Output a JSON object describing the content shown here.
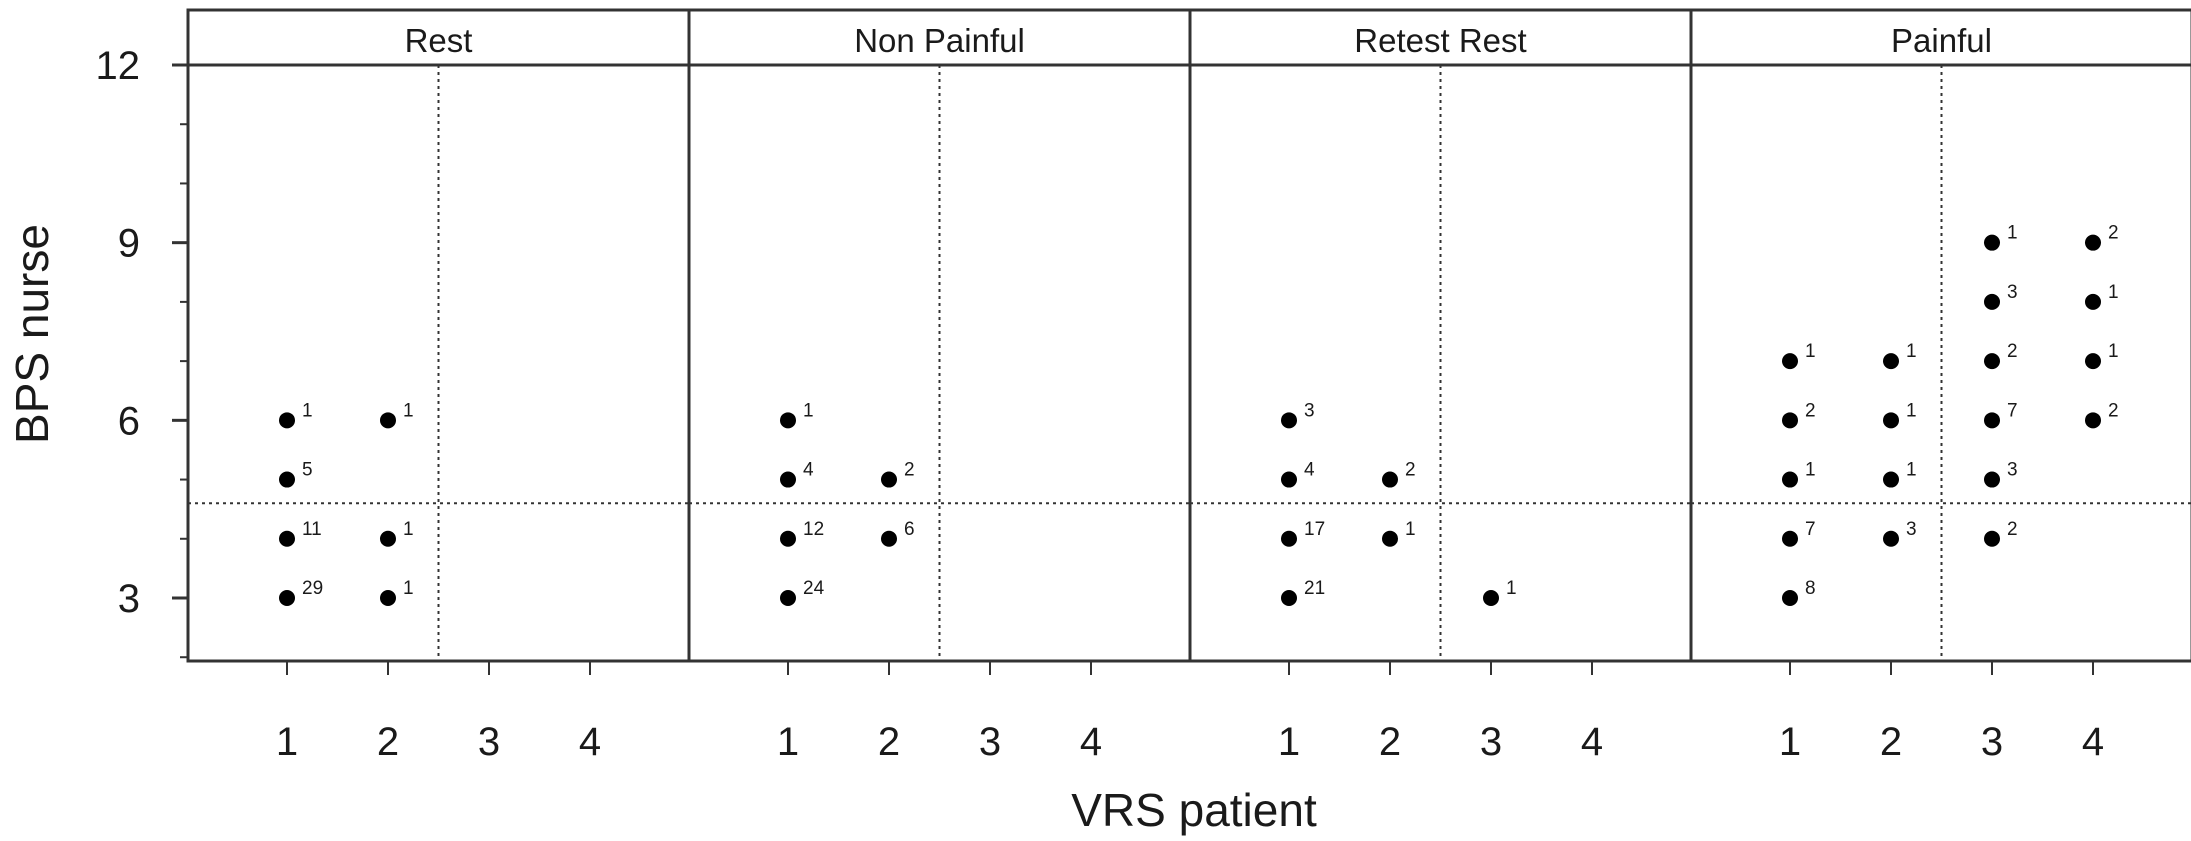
{
  "chart_data": {
    "type": "scatter",
    "xlabel": "VRS patient",
    "ylabel": "BPS nurse",
    "x_ticks": [
      "1",
      "2",
      "3",
      "4"
    ],
    "y_ticks": [
      "3",
      "6",
      "9",
      "12"
    ],
    "xlim": [
      0,
      5
    ],
    "ylim": [
      2,
      12
    ],
    "panels": [
      {
        "title": "Rest",
        "points": [
          {
            "x": 1,
            "y": 6,
            "n": "1"
          },
          {
            "x": 1,
            "y": 5,
            "n": "5"
          },
          {
            "x": 1,
            "y": 4,
            "n": "11"
          },
          {
            "x": 1,
            "y": 3,
            "n": "29"
          },
          {
            "x": 2,
            "y": 6,
            "n": "1"
          },
          {
            "x": 2,
            "y": 4,
            "n": "1"
          },
          {
            "x": 2,
            "y": 3,
            "n": "1"
          }
        ]
      },
      {
        "title": "Non Painful",
        "points": [
          {
            "x": 1,
            "y": 6,
            "n": "1"
          },
          {
            "x": 1,
            "y": 5,
            "n": "4"
          },
          {
            "x": 1,
            "y": 4,
            "n": "12"
          },
          {
            "x": 1,
            "y": 3,
            "n": "24"
          },
          {
            "x": 2,
            "y": 5,
            "n": "2"
          },
          {
            "x": 2,
            "y": 4,
            "n": "6"
          }
        ]
      },
      {
        "title": "Retest Rest",
        "points": [
          {
            "x": 1,
            "y": 6,
            "n": "3"
          },
          {
            "x": 1,
            "y": 5,
            "n": "4"
          },
          {
            "x": 1,
            "y": 4,
            "n": "17"
          },
          {
            "x": 1,
            "y": 3,
            "n": "21"
          },
          {
            "x": 2,
            "y": 5,
            "n": "2"
          },
          {
            "x": 2,
            "y": 4,
            "n": "1"
          },
          {
            "x": 3,
            "y": 3,
            "n": "1"
          }
        ]
      },
      {
        "title": "Painful",
        "points": [
          {
            "x": 1,
            "y": 7,
            "n": "1"
          },
          {
            "x": 1,
            "y": 6,
            "n": "2"
          },
          {
            "x": 1,
            "y": 5,
            "n": "1"
          },
          {
            "x": 1,
            "y": 4,
            "n": "7"
          },
          {
            "x": 1,
            "y": 3,
            "n": "8"
          },
          {
            "x": 2,
            "y": 7,
            "n": "1"
          },
          {
            "x": 2,
            "y": 6,
            "n": "1"
          },
          {
            "x": 2,
            "y": 5,
            "n": "1"
          },
          {
            "x": 2,
            "y": 4,
            "n": "3"
          },
          {
            "x": 3,
            "y": 9,
            "n": "1"
          },
          {
            "x": 3,
            "y": 8,
            "n": "3"
          },
          {
            "x": 3,
            "y": 7,
            "n": "2"
          },
          {
            "x": 3,
            "y": 6,
            "n": "7"
          },
          {
            "x": 3,
            "y": 5,
            "n": "3"
          },
          {
            "x": 3,
            "y": 4,
            "n": "2"
          },
          {
            "x": 4,
            "y": 9,
            "n": "2"
          },
          {
            "x": 4,
            "y": 8,
            "n": "1"
          },
          {
            "x": 4,
            "y": 7,
            "n": "1"
          },
          {
            "x": 4,
            "y": 6,
            "n": "2"
          }
        ]
      }
    ],
    "reference_lines": {
      "vertical_x": 2.5,
      "horizontal_y": 4.6,
      "style": "dotted"
    },
    "grid": false,
    "legend": "none"
  }
}
